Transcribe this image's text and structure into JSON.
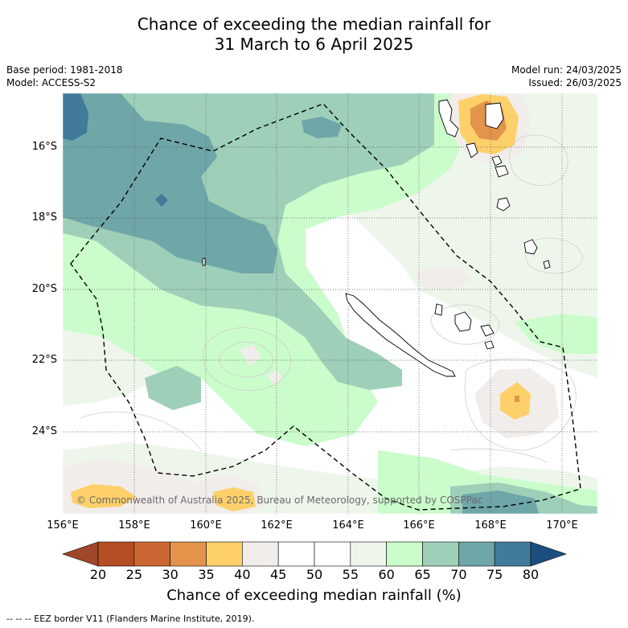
{
  "title": {
    "line1": "Chance of exceeding the median rainfall for",
    "line2": "31 March to 6 April 2025"
  },
  "meta_left": {
    "base_period": "Base period: 1981-2018",
    "model": "Model: ACCESS-S2"
  },
  "meta_right": {
    "model_run": "Model run: 24/03/2025",
    "issued": "Issued: 26/03/2025"
  },
  "map": {
    "lat_labels": [
      "16°S",
      "18°S",
      "20°S",
      "22°S",
      "24°S"
    ],
    "lon_labels": [
      "156°E",
      "158°E",
      "160°E",
      "162°E",
      "164°E",
      "166°E",
      "168°E",
      "170°E"
    ],
    "copyright": "© Commonwealth of Australia 2025, Bureau of Meteorology, supported by COSPPac"
  },
  "colorbar": {
    "ticks": [
      "20",
      "25",
      "30",
      "35",
      "40",
      "45",
      "50",
      "55",
      "60",
      "65",
      "70",
      "75",
      "80"
    ],
    "colors": [
      "#a0462a",
      "#b54e22",
      "#cc6733",
      "#e3944a",
      "#fdd06a",
      "#f1edea",
      "#ffffff",
      "#ffffff",
      "#eef6ec",
      "#cbfccb",
      "#9ecfb8",
      "#6fa6a8",
      "#427a9a",
      "#1c4f80"
    ],
    "label": "Chance of exceeding median rainfall (%)"
  },
  "footnote": "--  --  -- EEZ border V11 (Flanders Marine Institute, 2019)."
}
